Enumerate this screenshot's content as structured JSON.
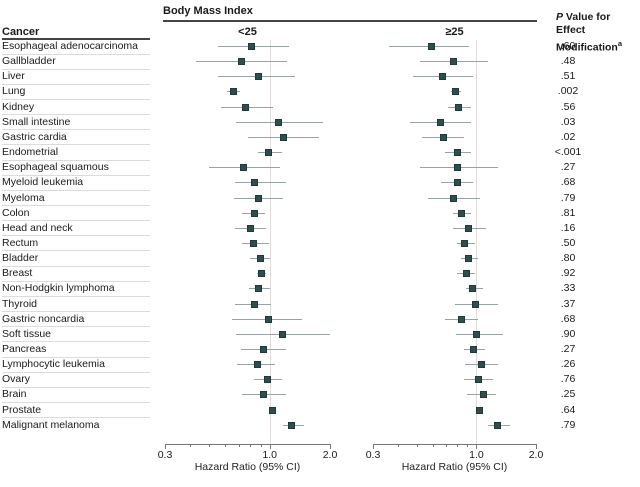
{
  "chart_data": {
    "type": "forest",
    "title": "Body Mass Index",
    "col_header": "Cancer",
    "groups": [
      "<25",
      "≥25"
    ],
    "xlabel": "Hazard Ratio (95% CI)",
    "x_scale": "log",
    "xlim": [
      0.3,
      2.0
    ],
    "major_ticks": [
      0.3,
      1.0,
      2.0
    ],
    "major_tick_labels": [
      "0.3",
      "1.0",
      "2.0"
    ],
    "minor_ticks": [
      0.4,
      0.5,
      0.6,
      0.7,
      0.8,
      0.9
    ],
    "ref_line": 1.0,
    "p_header": {
      "p": "P",
      "rest": " Value for Effect",
      "line2": "Modification",
      "sup": "a"
    },
    "colors": {
      "marker": "#2e4d4d",
      "marker_border": "#203a3a",
      "ci_line": "#9aa3a3",
      "ref_line": "#e3dcdc",
      "separator": "#dcdcdc",
      "header_rule": "#444444",
      "axis": "#777777"
    },
    "rows": [
      {
        "cancer": "Esophageal adenocarcinoma",
        "p": ".60",
        "lt25": {
          "hr": 0.81,
          "lo": 0.55,
          "hi": 1.25
        },
        "ge25": {
          "hr": 0.59,
          "lo": 0.36,
          "hi": 0.92
        }
      },
      {
        "cancer": "Gallbladder",
        "p": ".48",
        "lt25": {
          "hr": 0.72,
          "lo": 0.43,
          "hi": 1.22
        },
        "ge25": {
          "hr": 0.77,
          "lo": 0.52,
          "hi": 1.14
        }
      },
      {
        "cancer": "Liver",
        "p": ".51",
        "lt25": {
          "hr": 0.88,
          "lo": 0.55,
          "hi": 1.34
        },
        "ge25": {
          "hr": 0.67,
          "lo": 0.48,
          "hi": 0.96
        }
      },
      {
        "cancer": "Lung",
        "p": ".002",
        "lt25": {
          "hr": 0.66,
          "lo": 0.61,
          "hi": 0.71
        },
        "ge25": {
          "hr": 0.78,
          "lo": 0.74,
          "hi": 0.84
        }
      },
      {
        "cancer": "Kidney",
        "p": ".56",
        "lt25": {
          "hr": 0.76,
          "lo": 0.57,
          "hi": 1.04
        },
        "ge25": {
          "hr": 0.81,
          "lo": 0.72,
          "hi": 0.94
        }
      },
      {
        "cancer": "Small intestine",
        "p": ".03",
        "lt25": {
          "hr": 1.1,
          "lo": 0.68,
          "hi": 1.84
        },
        "ge25": {
          "hr": 0.66,
          "lo": 0.46,
          "hi": 0.94
        }
      },
      {
        "cancer": "Gastric cardia",
        "p": ".02",
        "lt25": {
          "hr": 1.17,
          "lo": 0.78,
          "hi": 1.77
        },
        "ge25": {
          "hr": 0.68,
          "lo": 0.53,
          "hi": 0.87
        }
      },
      {
        "cancer": "Endometrial",
        "p": "<.001",
        "lt25": {
          "hr": 0.99,
          "lo": 0.87,
          "hi": 1.15
        },
        "ge25": {
          "hr": 0.8,
          "lo": 0.69,
          "hi": 0.94
        }
      },
      {
        "cancer": "Esophageal squamous",
        "p": ".27",
        "lt25": {
          "hr": 0.74,
          "lo": 0.5,
          "hi": 1.13
        },
        "ge25": {
          "hr": 0.8,
          "lo": 0.52,
          "hi": 1.28
        }
      },
      {
        "cancer": "Myeloid leukemia",
        "p": ".68",
        "lt25": {
          "hr": 0.84,
          "lo": 0.67,
          "hi": 1.2
        },
        "ge25": {
          "hr": 0.8,
          "lo": 0.66,
          "hi": 0.96
        }
      },
      {
        "cancer": "Myeloma",
        "p": ".79",
        "lt25": {
          "hr": 0.88,
          "lo": 0.66,
          "hi": 1.17
        },
        "ge25": {
          "hr": 0.77,
          "lo": 0.57,
          "hi": 1.04
        }
      },
      {
        "cancer": "Colon",
        "p": ".81",
        "lt25": {
          "hr": 0.84,
          "lo": 0.73,
          "hi": 0.95
        },
        "ge25": {
          "hr": 0.84,
          "lo": 0.76,
          "hi": 0.94
        }
      },
      {
        "cancer": "Head and neck",
        "p": ".16",
        "lt25": {
          "hr": 0.8,
          "lo": 0.67,
          "hi": 0.96
        },
        "ge25": {
          "hr": 0.91,
          "lo": 0.76,
          "hi": 1.12
        }
      },
      {
        "cancer": "Rectum",
        "p": ".50",
        "lt25": {
          "hr": 0.83,
          "lo": 0.73,
          "hi": 0.99
        },
        "ge25": {
          "hr": 0.87,
          "lo": 0.8,
          "hi": 0.98
        }
      },
      {
        "cancer": "Bladder",
        "p": ".80",
        "lt25": {
          "hr": 0.9,
          "lo": 0.8,
          "hi": 1.0
        },
        "ge25": {
          "hr": 0.91,
          "lo": 0.84,
          "hi": 1.02
        }
      },
      {
        "cancer": "Breast",
        "p": ".92",
        "lt25": {
          "hr": 0.91,
          "lo": 0.86,
          "hi": 0.96
        },
        "ge25": {
          "hr": 0.89,
          "lo": 0.8,
          "hi": 0.98
        }
      },
      {
        "cancer": "Non-Hodgkin lymphoma",
        "p": ".33",
        "lt25": {
          "hr": 0.88,
          "lo": 0.79,
          "hi": 1.0
        },
        "ge25": {
          "hr": 0.96,
          "lo": 0.89,
          "hi": 1.08
        }
      },
      {
        "cancer": "Thyroid",
        "p": ".37",
        "lt25": {
          "hr": 0.84,
          "lo": 0.67,
          "hi": 1.02
        },
        "ge25": {
          "hr": 0.99,
          "lo": 0.78,
          "hi": 1.28
        }
      },
      {
        "cancer": "Gastric noncardia",
        "p": ".68",
        "lt25": {
          "hr": 0.99,
          "lo": 0.65,
          "hi": 1.45
        },
        "ge25": {
          "hr": 0.84,
          "lo": 0.69,
          "hi": 1.02
        }
      },
      {
        "cancer": "Soft tissue",
        "p": ".90",
        "lt25": {
          "hr": 1.16,
          "lo": 0.68,
          "hi": 1.99
        },
        "ge25": {
          "hr": 1.0,
          "lo": 0.79,
          "hi": 1.36
        }
      },
      {
        "cancer": "Pancreas",
        "p": ".27",
        "lt25": {
          "hr": 0.93,
          "lo": 0.72,
          "hi": 1.2
        },
        "ge25": {
          "hr": 0.97,
          "lo": 0.87,
          "hi": 1.1
        }
      },
      {
        "cancer": "Lymphocytic leukemia",
        "p": ".26",
        "lt25": {
          "hr": 0.87,
          "lo": 0.69,
          "hi": 1.06
        },
        "ge25": {
          "hr": 1.06,
          "lo": 0.88,
          "hi": 1.28
        }
      },
      {
        "cancer": "Ovary",
        "p": ".76",
        "lt25": {
          "hr": 0.98,
          "lo": 0.83,
          "hi": 1.15
        },
        "ge25": {
          "hr": 1.02,
          "lo": 0.87,
          "hi": 1.21
        }
      },
      {
        "cancer": "Brain",
        "p": ".25",
        "lt25": {
          "hr": 0.93,
          "lo": 0.73,
          "hi": 1.2
        },
        "ge25": {
          "hr": 1.08,
          "lo": 0.9,
          "hi": 1.26
        }
      },
      {
        "cancer": "Prostate",
        "p": ".64",
        "lt25": {
          "hr": 1.03,
          "lo": 0.99,
          "hi": 1.07
        },
        "ge25": {
          "hr": 1.04,
          "lo": 1.01,
          "hi": 1.08
        }
      },
      {
        "cancer": "Malignant melanoma",
        "p": ".79",
        "lt25": {
          "hr": 1.29,
          "lo": 1.17,
          "hi": 1.48
        },
        "ge25": {
          "hr": 1.28,
          "lo": 1.14,
          "hi": 1.47
        }
      }
    ]
  }
}
